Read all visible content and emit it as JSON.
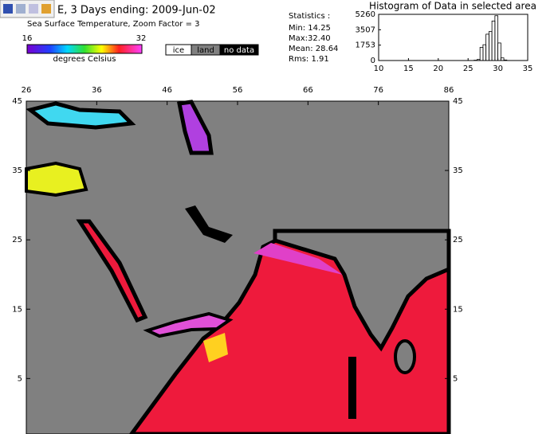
{
  "header": {
    "title": "E, 3 Days ending: 2009-Jun-02",
    "subtitle": "Sea Surface Temperature,  Zoom Factor = 3"
  },
  "colorbar": {
    "min_label": "16",
    "max_label": "32",
    "unit": "degrees Celsius"
  },
  "legend": {
    "items": [
      "ice",
      "land",
      "no data"
    ]
  },
  "statistics": {
    "title": "Statistics :",
    "lines": [
      "Min: 14.25",
      "Max:32.40",
      "Mean: 28.64",
      "Rms:   1.91"
    ]
  },
  "chart_data": {
    "type": "histogram",
    "title": "Histogram of Data in selected area",
    "bins": [
      26,
      26.5,
      27,
      27.5,
      28,
      28.5,
      29,
      29.5,
      30,
      30.5,
      31,
      31.5,
      32
    ],
    "counts": [
      40,
      120,
      1500,
      1800,
      3000,
      3300,
      4500,
      5100,
      2000,
      300,
      60,
      10
    ],
    "xlim": [
      10,
      35
    ],
    "xticks": [
      10,
      15,
      20,
      25,
      30,
      35
    ],
    "ylim": [
      0,
      5260
    ],
    "yticks": [
      0,
      1753,
      3507,
      5260
    ]
  },
  "map": {
    "xlim": [
      26,
      86
    ],
    "ylim": [
      -3,
      45
    ],
    "xticks": [
      26,
      36,
      46,
      56,
      66,
      76,
      86
    ],
    "yticks": [
      45,
      35,
      25,
      15,
      5
    ]
  }
}
